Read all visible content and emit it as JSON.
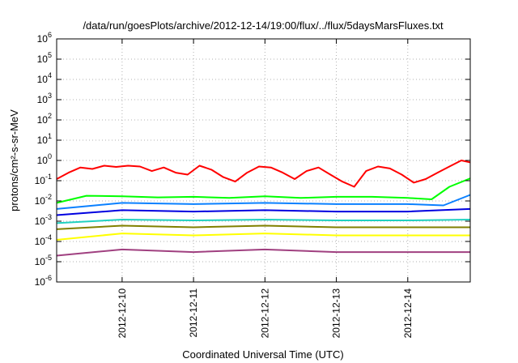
{
  "chart_data": {
    "type": "line",
    "title": "/data/run/goesPlots/archive/2012-12-14/19:00/flux/../flux/5daysMarsFluxes.txt",
    "xlabel": "Coordinated Universal Time (UTC)",
    "ylabel": "protons/cm²-s-sr-MeV",
    "y_scale": "log",
    "ylim": [
      "1e-6",
      "1e6"
    ],
    "y_ticks": [
      {
        "base": "10",
        "exp": "6"
      },
      {
        "base": "10",
        "exp": "5"
      },
      {
        "base": "10",
        "exp": "4"
      },
      {
        "base": "10",
        "exp": "3"
      },
      {
        "base": "10",
        "exp": "2"
      },
      {
        "base": "10",
        "exp": "1"
      },
      {
        "base": "10",
        "exp": "0"
      },
      {
        "base": "10",
        "exp": "-1"
      },
      {
        "base": "10",
        "exp": "-2"
      },
      {
        "base": "10",
        "exp": "-3"
      },
      {
        "base": "10",
        "exp": "-4"
      },
      {
        "base": "10",
        "exp": "-5"
      },
      {
        "base": "10",
        "exp": "-6"
      }
    ],
    "xlim": [
      "2012-12-09 02:00",
      "2012-12-14 21:00"
    ],
    "x_ticks": [
      "2012-12-10",
      "2012-12-11",
      "2012-12-12",
      "2012-12-13",
      "2012-12-14"
    ],
    "grid": true,
    "series": [
      {
        "color": "#ff0000",
        "values": [
          [
            "2012-12-09 02:00",
            0.12
          ],
          [
            "2012-12-09 06:00",
            0.25
          ],
          [
            "2012-12-09 10:00",
            0.45
          ],
          [
            "2012-12-09 14:00",
            0.38
          ],
          [
            "2012-12-09 18:00",
            0.55
          ],
          [
            "2012-12-09 22:00",
            0.48
          ],
          [
            "2012-12-10 02:00",
            0.55
          ],
          [
            "2012-12-10 06:00",
            0.5
          ],
          [
            "2012-12-10 10:00",
            0.3
          ],
          [
            "2012-12-10 14:00",
            0.45
          ],
          [
            "2012-12-10 18:00",
            0.25
          ],
          [
            "2012-12-10 22:00",
            0.2
          ],
          [
            "2012-12-11 02:00",
            0.55
          ],
          [
            "2012-12-11 06:00",
            0.35
          ],
          [
            "2012-12-11 10:00",
            0.15
          ],
          [
            "2012-12-11 14:00",
            0.09
          ],
          [
            "2012-12-11 18:00",
            0.25
          ],
          [
            "2012-12-11 22:00",
            0.5
          ],
          [
            "2012-12-12 02:00",
            0.45
          ],
          [
            "2012-12-12 06:00",
            0.25
          ],
          [
            "2012-12-12 10:00",
            0.12
          ],
          [
            "2012-12-12 14:00",
            0.3
          ],
          [
            "2012-12-12 18:00",
            0.45
          ],
          [
            "2012-12-12 22:00",
            0.2
          ],
          [
            "2012-12-13 02:00",
            0.09
          ],
          [
            "2012-12-13 06:00",
            0.05
          ],
          [
            "2012-12-13 10:00",
            0.3
          ],
          [
            "2012-12-13 14:00",
            0.5
          ],
          [
            "2012-12-13 18:00",
            0.4
          ],
          [
            "2012-12-13 22:00",
            0.2
          ],
          [
            "2012-12-14 02:00",
            0.08
          ],
          [
            "2012-12-14 06:00",
            0.12
          ],
          [
            "2012-12-14 10:00",
            0.25
          ],
          [
            "2012-12-14 14:00",
            0.5
          ],
          [
            "2012-12-14 18:00",
            1.0
          ],
          [
            "2012-12-14 21:00",
            0.8
          ]
        ]
      },
      {
        "color": "#00ff00",
        "values": [
          [
            "2012-12-09 02:00",
            0.008
          ],
          [
            "2012-12-09 12:00",
            0.018
          ],
          [
            "2012-12-10 00:00",
            0.017
          ],
          [
            "2012-12-10 12:00",
            0.015
          ],
          [
            "2012-12-11 00:00",
            0.016
          ],
          [
            "2012-12-11 12:00",
            0.014
          ],
          [
            "2012-12-12 00:00",
            0.017
          ],
          [
            "2012-12-12 12:00",
            0.014
          ],
          [
            "2012-12-13 00:00",
            0.016
          ],
          [
            "2012-12-13 12:00",
            0.016
          ],
          [
            "2012-12-14 00:00",
            0.014
          ],
          [
            "2012-12-14 08:00",
            0.012
          ],
          [
            "2012-12-14 14:00",
            0.05
          ],
          [
            "2012-12-14 21:00",
            0.13
          ]
        ]
      },
      {
        "color": "#0a80ff",
        "values": [
          [
            "2012-12-09 02:00",
            0.004
          ],
          [
            "2012-12-10 00:00",
            0.008
          ],
          [
            "2012-12-11 00:00",
            0.007
          ],
          [
            "2012-12-12 00:00",
            0.008
          ],
          [
            "2012-12-13 00:00",
            0.007
          ],
          [
            "2012-12-14 00:00",
            0.007
          ],
          [
            "2012-12-14 12:00",
            0.006
          ],
          [
            "2012-12-14 21:00",
            0.02
          ]
        ]
      },
      {
        "color": "#0000e0",
        "values": [
          [
            "2012-12-09 02:00",
            0.002
          ],
          [
            "2012-12-10 00:00",
            0.0035
          ],
          [
            "2012-12-11 00:00",
            0.003
          ],
          [
            "2012-12-12 00:00",
            0.0035
          ],
          [
            "2012-12-13 00:00",
            0.003
          ],
          [
            "2012-12-14 00:00",
            0.003
          ],
          [
            "2012-12-14 21:00",
            0.004
          ]
        ]
      },
      {
        "color": "#20d0c0",
        "values": [
          [
            "2012-12-09 02:00",
            0.0008
          ],
          [
            "2012-12-10 00:00",
            0.0012
          ],
          [
            "2012-12-11 00:00",
            0.0011
          ],
          [
            "2012-12-12 00:00",
            0.0012
          ],
          [
            "2012-12-13 00:00",
            0.0011
          ],
          [
            "2012-12-14 00:00",
            0.0011
          ],
          [
            "2012-12-14 21:00",
            0.0012
          ]
        ]
      },
      {
        "color": "#808000",
        "values": [
          [
            "2012-12-09 02:00",
            0.0004
          ],
          [
            "2012-12-10 00:00",
            0.0006
          ],
          [
            "2012-12-11 00:00",
            0.0005
          ],
          [
            "2012-12-12 00:00",
            0.0006
          ],
          [
            "2012-12-13 00:00",
            0.0005
          ],
          [
            "2012-12-14 00:00",
            0.0005
          ],
          [
            "2012-12-14 21:00",
            0.0005
          ]
        ]
      },
      {
        "color": "#ffff00",
        "values": [
          [
            "2012-12-09 02:00",
            0.00012
          ],
          [
            "2012-12-10 00:00",
            0.00025
          ],
          [
            "2012-12-11 00:00",
            0.0002
          ],
          [
            "2012-12-12 00:00",
            0.00025
          ],
          [
            "2012-12-13 00:00",
            0.0002
          ],
          [
            "2012-12-14 00:00",
            0.0002
          ],
          [
            "2012-12-14 21:00",
            0.0002
          ]
        ]
      },
      {
        "color": "#a04080",
        "values": [
          [
            "2012-12-09 02:00",
            2e-05
          ],
          [
            "2012-12-10 00:00",
            4e-05
          ],
          [
            "2012-12-11 00:00",
            3e-05
          ],
          [
            "2012-12-12 00:00",
            4e-05
          ],
          [
            "2012-12-13 00:00",
            3e-05
          ],
          [
            "2012-12-14 00:00",
            3e-05
          ],
          [
            "2012-12-14 21:00",
            3e-05
          ]
        ]
      }
    ]
  }
}
